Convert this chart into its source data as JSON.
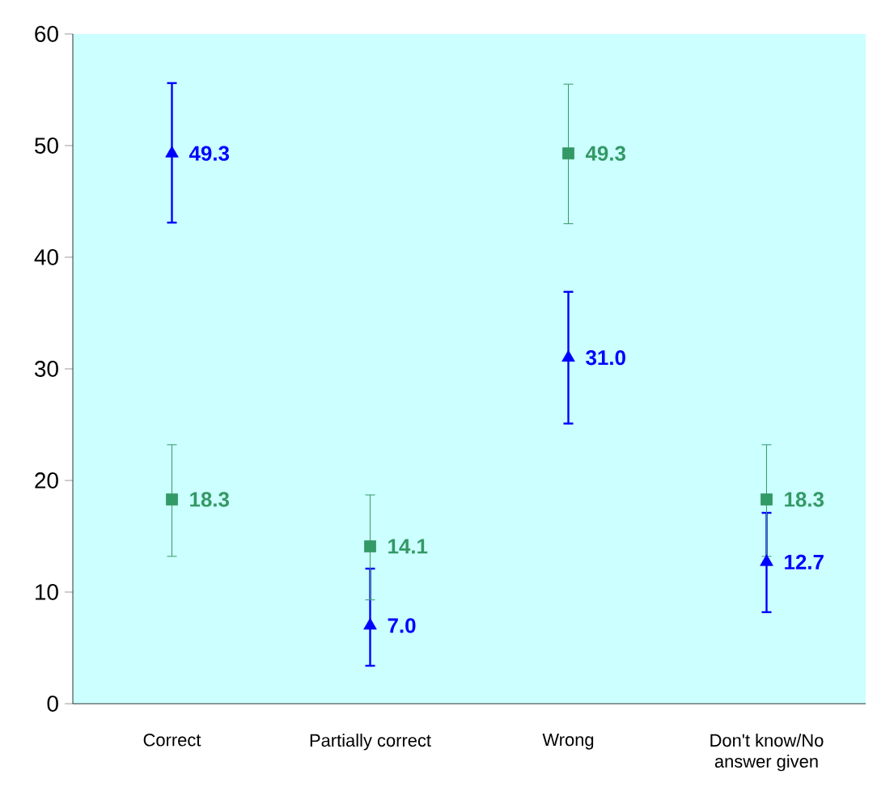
{
  "chart_data": {
    "type": "scatter",
    "categories": [
      "Correct",
      "Partially correct",
      "Wrong",
      "Don't know/No answer given"
    ],
    "series": [
      {
        "color": "#0000ff",
        "marker": "triangle",
        "values": [
          49.3,
          7.0,
          31.0,
          12.7
        ],
        "errors": [
          [
            43.1,
            55.6
          ],
          [
            3.4,
            12.1
          ],
          [
            25.1,
            36.9
          ],
          [
            8.2,
            17.1
          ]
        ],
        "value_labels": [
          "49.3",
          "7.0",
          "31.0",
          "12.7"
        ]
      },
      {
        "color": "#339966",
        "marker": "square",
        "values": [
          18.3,
          14.1,
          49.3,
          18.3
        ],
        "errors": [
          [
            13.2,
            23.2
          ],
          [
            9.3,
            18.7
          ],
          [
            43.0,
            55.5
          ],
          [
            13.2,
            23.2
          ]
        ],
        "value_labels": [
          "18.3",
          "14.1",
          "49.3",
          "18.3"
        ]
      }
    ],
    "ylim": [
      0,
      60
    ],
    "yticks": [
      0,
      10,
      20,
      30,
      40,
      50,
      60
    ],
    "grid": false
  }
}
